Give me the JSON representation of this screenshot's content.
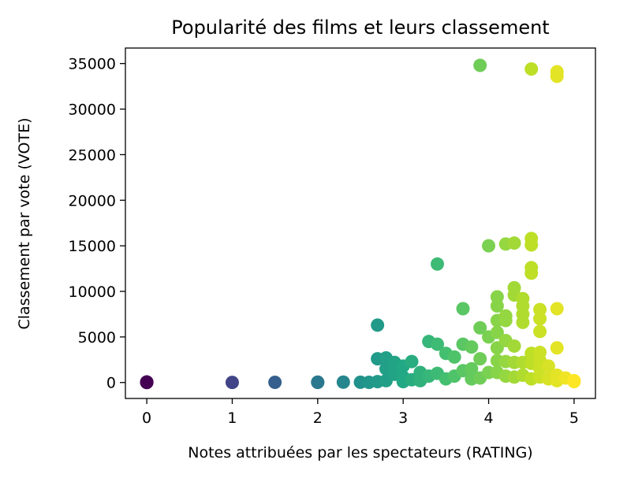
{
  "chart_data": {
    "type": "scatter",
    "title": "Popularité des films et leurs classement",
    "xlabel": "Notes attribuées par les spectateurs (RATING)",
    "ylabel": "Classement par vote (VOTE)",
    "xlim": [
      -0.25,
      5.25
    ],
    "ylim": [
      -1750,
      36700
    ],
    "xticks": [
      0,
      1,
      2,
      3,
      4,
      5
    ],
    "yticks": [
      0,
      5000,
      10000,
      15000,
      20000,
      25000,
      30000,
      35000
    ],
    "xtick_labels": [
      "0",
      "1",
      "2",
      "3",
      "4",
      "5"
    ],
    "ytick_labels": [
      "0",
      "5000",
      "10000",
      "15000",
      "20000",
      "25000",
      "30000",
      "35000"
    ],
    "grid": false,
    "colormap": "viridis",
    "color_by": "x",
    "marker_color_range": [
      "#440154",
      "#fde725"
    ],
    "x": [
      0,
      0,
      0,
      1,
      1.5,
      2,
      2,
      2.3,
      2.5,
      2.6,
      2.7,
      2.7,
      2.7,
      2.8,
      2.8,
      2.8,
      2.9,
      2.9,
      3,
      3,
      3,
      3.1,
      3.1,
      3.2,
      3.2,
      3.3,
      3.3,
      3.4,
      3.4,
      3.4,
      3.5,
      3.5,
      3.6,
      3.6,
      3.7,
      3.7,
      3.7,
      3.8,
      3.8,
      3.8,
      3.9,
      3.9,
      3.9,
      3.9,
      4,
      4,
      4,
      4.1,
      4.1,
      4.1,
      4.1,
      4.1,
      4.1,
      4.1,
      4.2,
      4.2,
      4.2,
      4.2,
      4.2,
      4.2,
      4.3,
      4.3,
      4.3,
      4.3,
      4.3,
      4.3,
      4.4,
      4.4,
      4.4,
      4.4,
      4.4,
      4.4,
      4.5,
      4.5,
      4.5,
      4.5,
      4.5,
      4.5,
      4.5,
      4.5,
      4.6,
      4.6,
      4.6,
      4.6,
      4.6,
      4.6,
      4.6,
      4.7,
      4.7,
      4.8,
      4.8,
      4.8,
      4.8,
      4.8,
      4.8,
      4.9,
      5,
      5
    ],
    "y": [
      0,
      30,
      60,
      10,
      20,
      10,
      40,
      40,
      30,
      20,
      2600,
      6300,
      100,
      2700,
      1500,
      200,
      2200,
      900,
      1800,
      600,
      100,
      2300,
      300,
      1100,
      200,
      4500,
      700,
      13000,
      4200,
      1000,
      3200,
      400,
      2800,
      700,
      8100,
      4200,
      1300,
      3900,
      1500,
      400,
      34800,
      6000,
      2600,
      500,
      15000,
      5000,
      1100,
      9400,
      8400,
      6800,
      5500,
      3800,
      2400,
      1100,
      15200,
      7300,
      6800,
      4600,
      2300,
      700,
      15300,
      10400,
      9600,
      4000,
      2200,
      600,
      9200,
      8400,
      7500,
      6600,
      2200,
      800,
      34400,
      15800,
      15100,
      12600,
      12000,
      3200,
      2100,
      400,
      8000,
      7000,
      5600,
      3300,
      2400,
      1500,
      600,
      1800,
      400,
      34100,
      33600,
      8100,
      3800,
      800,
      200,
      500,
      200,
      100
    ]
  }
}
